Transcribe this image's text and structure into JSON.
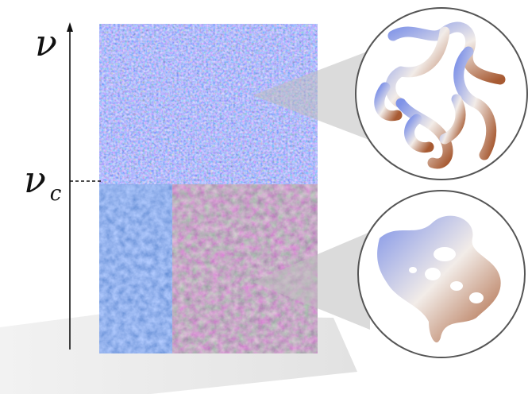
{
  "axis": {
    "label": "ν",
    "critical_label": "ν",
    "critical_subscript": "c"
  }
}
